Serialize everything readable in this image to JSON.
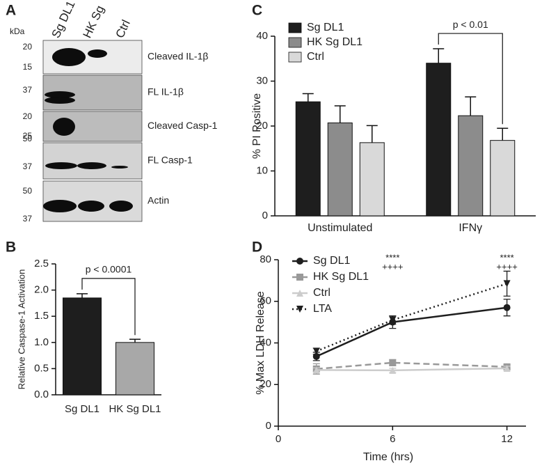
{
  "blot": {
    "panel": "A",
    "unit": "kDa",
    "lanes": [
      "Sg DL1",
      "HK Sg",
      "Ctrl"
    ],
    "rows": [
      {
        "markers": [
          "20",
          "15"
        ],
        "label": "Cleaved IL-1β"
      },
      {
        "markers": [
          "37"
        ],
        "label": "FL IL-1β"
      },
      {
        "markers": [
          "20",
          "25"
        ],
        "label": "Cleaved Casp-1"
      },
      {
        "markers": [
          "50",
          "37"
        ],
        "label": "FL Casp-1"
      },
      {
        "markers": [
          "50",
          "37"
        ],
        "label": "Actin"
      }
    ]
  },
  "chart_data": [
    {
      "type": "bar",
      "panel": "B",
      "ylabel": "Relative Caspase-1 Activation",
      "categories": [
        "Sg DL1",
        "HK Sg DL1"
      ],
      "values": [
        1.85,
        1.0
      ],
      "errors": [
        0.08,
        0.06
      ],
      "colors": [
        "#1e1e1e",
        "#a8a8a8"
      ],
      "ylim": [
        0,
        2.5
      ],
      "yticks": [
        {
          "value": 0,
          "label": "0.0"
        },
        0.5,
        {
          "value": 1,
          "label": "1.0"
        },
        1.5,
        {
          "value": 2,
          "label": "2.0"
        },
        2.5
      ],
      "annotation": "p < 0.0001"
    },
    {
      "type": "bar",
      "panel": "C",
      "ylabel": "% PI Positive",
      "categories": [
        "Unstimulated",
        "IFNγ"
      ],
      "series": [
        {
          "name": "Sg DL1",
          "color": "#1e1e1e",
          "values": [
            25.4,
            34.0
          ],
          "errors": [
            1.8,
            3.2
          ]
        },
        {
          "name": "HK Sg DL1",
          "color": "#8c8c8c",
          "values": [
            20.7,
            22.3
          ],
          "errors": [
            3.8,
            4.2
          ]
        },
        {
          "name": "Ctrl",
          "color": "#d9d9d9",
          "values": [
            16.3,
            16.8
          ],
          "errors": [
            3.8,
            2.7
          ]
        }
      ],
      "ylim": [
        0,
        40
      ],
      "yticks": [
        0,
        10,
        20,
        30,
        40
      ],
      "annotation": "p < 0.01"
    },
    {
      "type": "line",
      "panel": "D",
      "xlabel": "Time (hrs)",
      "ylabel": "% Max LDH Release",
      "x": [
        2,
        6,
        12
      ],
      "series": [
        {
          "name": "Sg DL1",
          "color": "#1e1e1e",
          "marker": "circle",
          "dash": "solid",
          "values": [
            33.5,
            50,
            57
          ],
          "errors": [
            2,
            3,
            4
          ]
        },
        {
          "name": "HK Sg DL1",
          "color": "#999999",
          "marker": "square",
          "dash": "dashed",
          "values": [
            27.5,
            30.5,
            28.5
          ],
          "errors": [
            2.5,
            1.5,
            1
          ]
        },
        {
          "name": "Ctrl",
          "color": "#cccccc",
          "marker": "triangle",
          "dash": "solid",
          "values": [
            27,
            26.8,
            27.8
          ],
          "errors": [
            1,
            1,
            1
          ]
        },
        {
          "name": "LTA",
          "color": "#1e1e1e",
          "marker": "triangle-down",
          "dash": "dotted",
          "values": [
            36,
            51,
            68.5
          ],
          "errors": [
            1.5,
            2,
            6
          ]
        }
      ],
      "xlim": [
        0,
        13
      ],
      "xticks": [
        0,
        6,
        12
      ],
      "ylim": [
        0,
        80
      ],
      "yticks": [
        0,
        20,
        40,
        60,
        80
      ],
      "annotations": [
        {
          "x": 6,
          "lines": [
            "****",
            "++++"
          ]
        },
        {
          "x": 12,
          "lines": [
            "****",
            "++++"
          ]
        }
      ]
    }
  ]
}
